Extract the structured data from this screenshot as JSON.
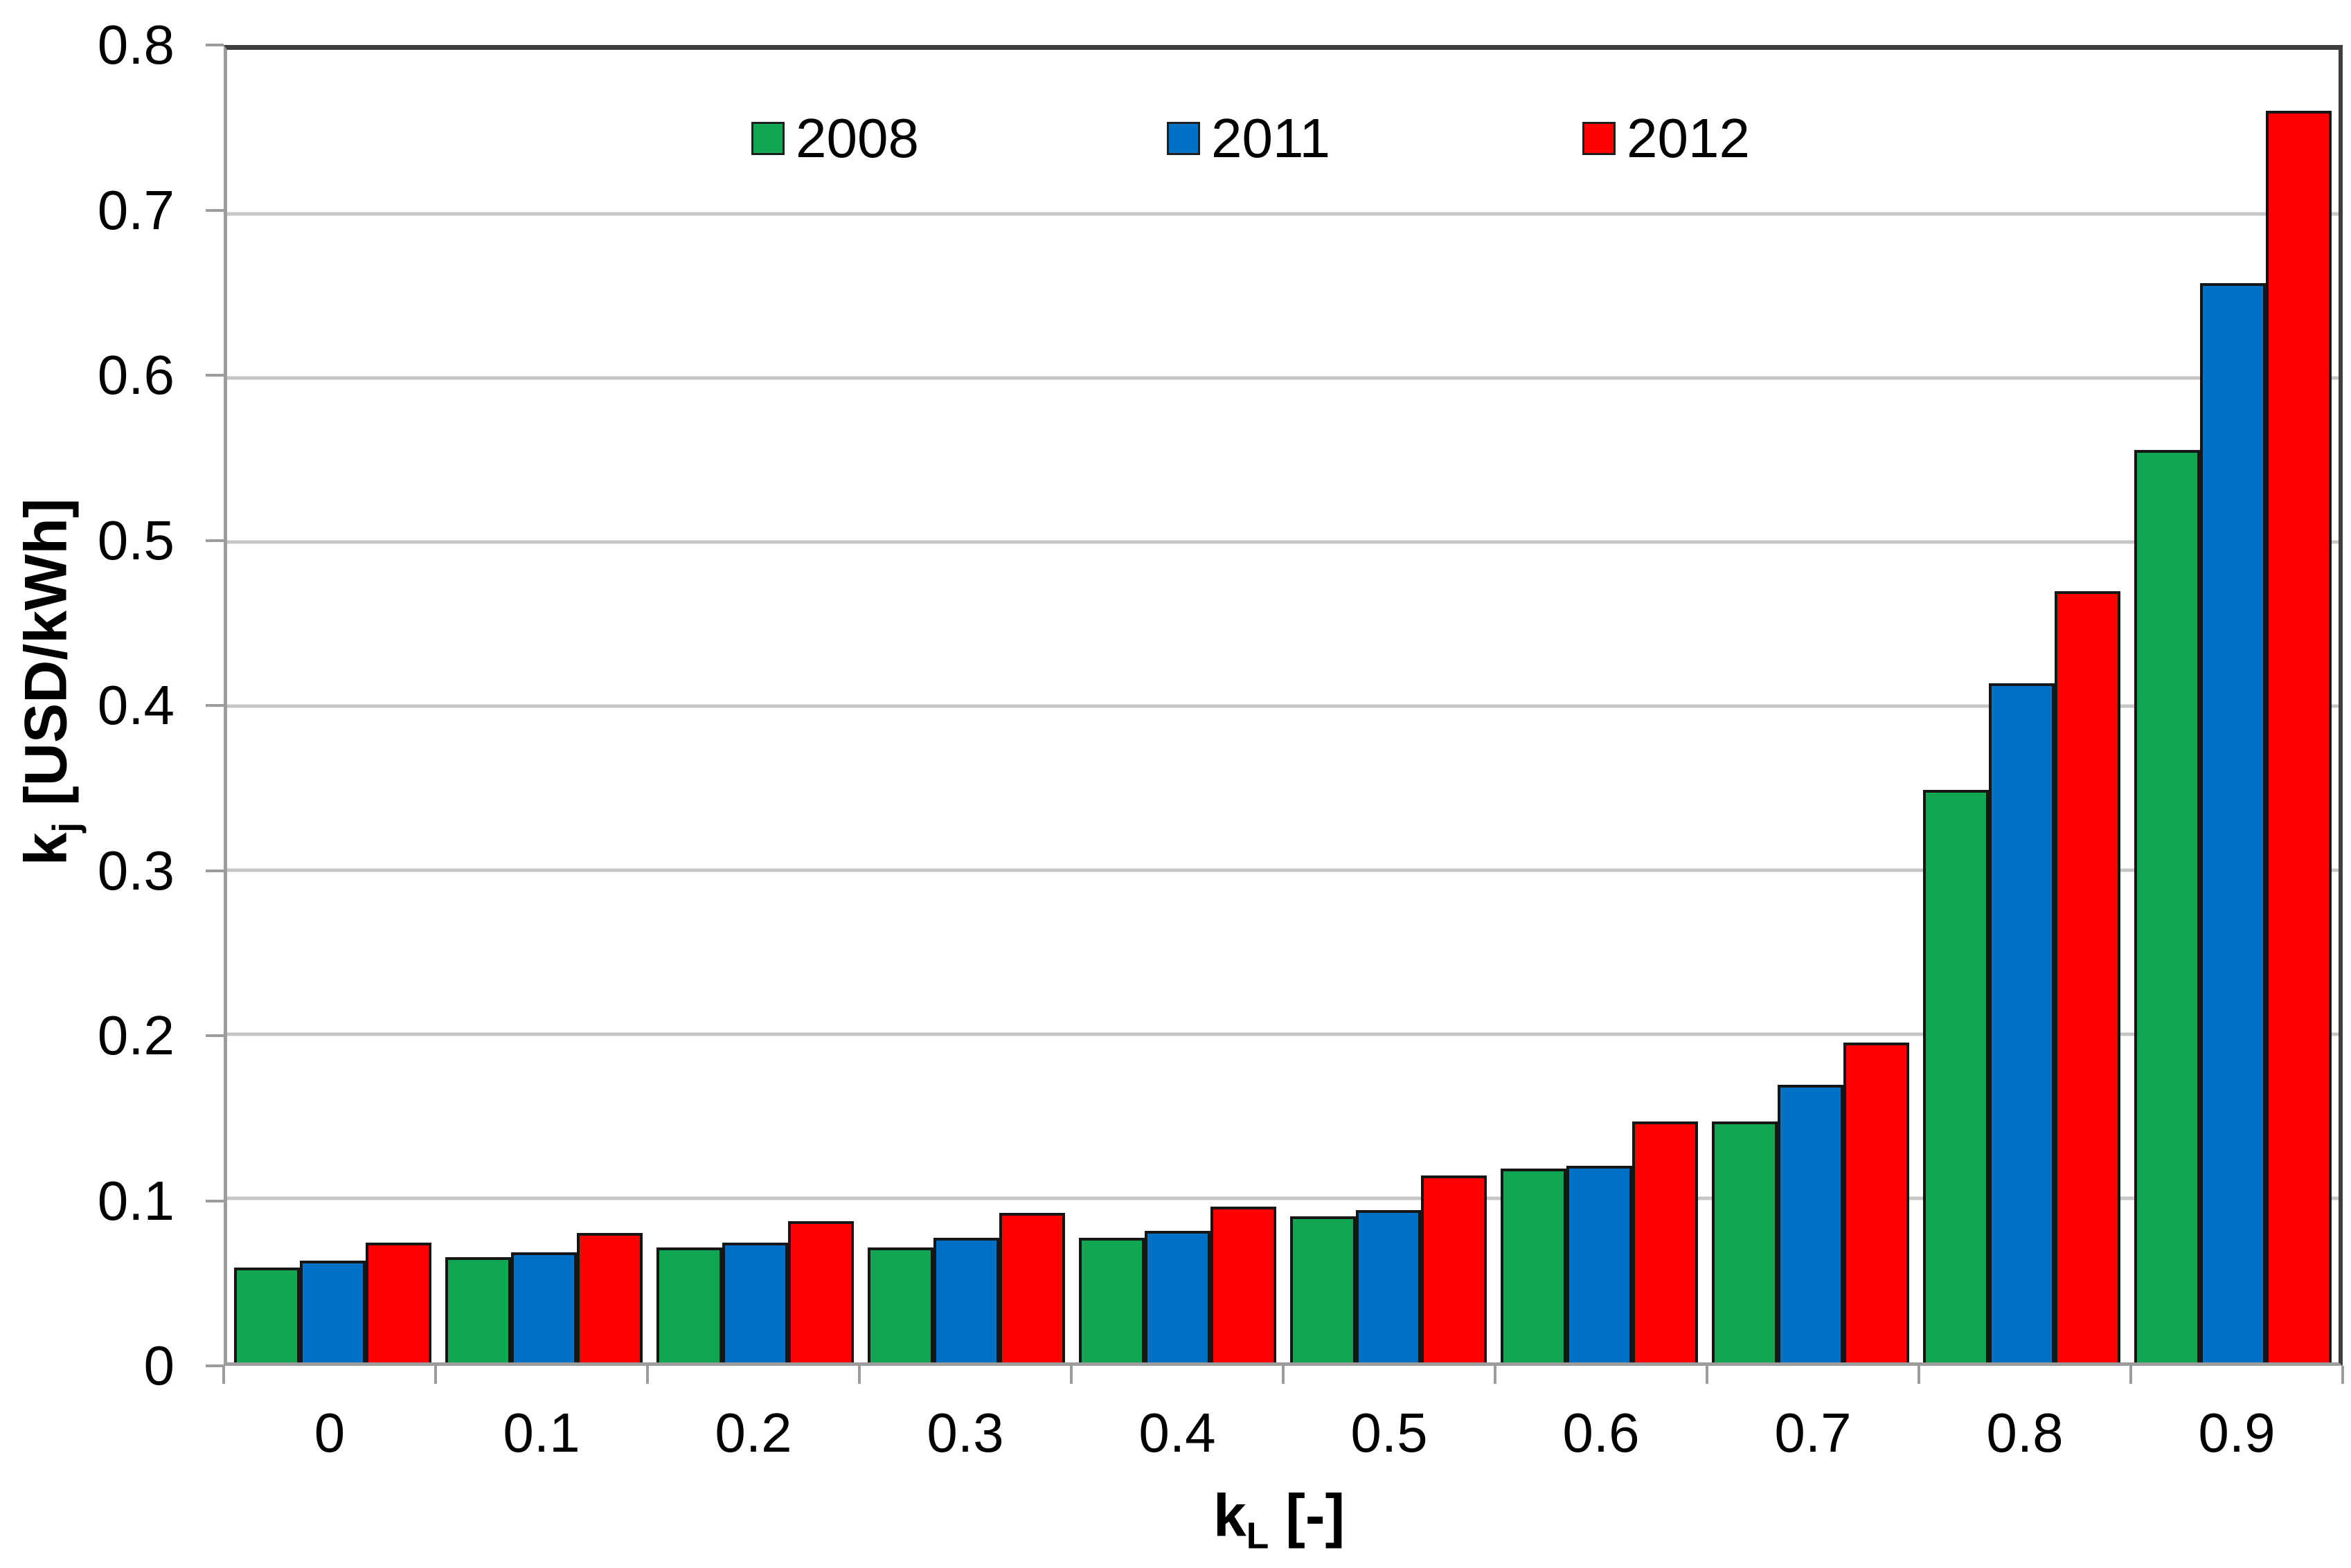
{
  "chart_data": {
    "type": "bar",
    "title": "",
    "categories": [
      "0",
      "0.1",
      "0.2",
      "0.3",
      "0.4",
      "0.5",
      "0.6",
      "0.7",
      "0.8",
      "0.9"
    ],
    "series": [
      {
        "name": "2008",
        "color": "#12A552",
        "values": [
          0.058,
          0.064,
          0.07,
          0.07,
          0.076,
          0.089,
          0.118,
          0.147,
          0.349,
          0.556
        ]
      },
      {
        "name": "2011",
        "color": "#0072C6",
        "values": [
          0.062,
          0.067,
          0.073,
          0.076,
          0.08,
          0.093,
          0.12,
          0.169,
          0.414,
          0.658
        ]
      },
      {
        "name": "2012",
        "color": "#FE0000",
        "values": [
          0.073,
          0.079,
          0.086,
          0.091,
          0.095,
          0.114,
          0.147,
          0.195,
          0.47,
          0.763
        ]
      }
    ],
    "xlabel_symbol": "k",
    "xlabel_subscript": "L",
    "xlabel_unit": "[-]",
    "ylabel_symbol": "k",
    "ylabel_subscript": "j",
    "ylabel_unit": "[USD/kWh]",
    "ylim": [
      0,
      0.8
    ],
    "y_ticks": [
      "0",
      "0.1",
      "0.2",
      "0.3",
      "0.4",
      "0.5",
      "0.6",
      "0.7",
      "0.8"
    ],
    "grid": true,
    "legend_position": "top-center",
    "colors": {
      "gridline": "#c6c6c6",
      "frame_dark": "#3f3f3f",
      "axis_gray": "#9c9c9c",
      "bar_outline": "#161616",
      "background": "#ffffff"
    }
  }
}
